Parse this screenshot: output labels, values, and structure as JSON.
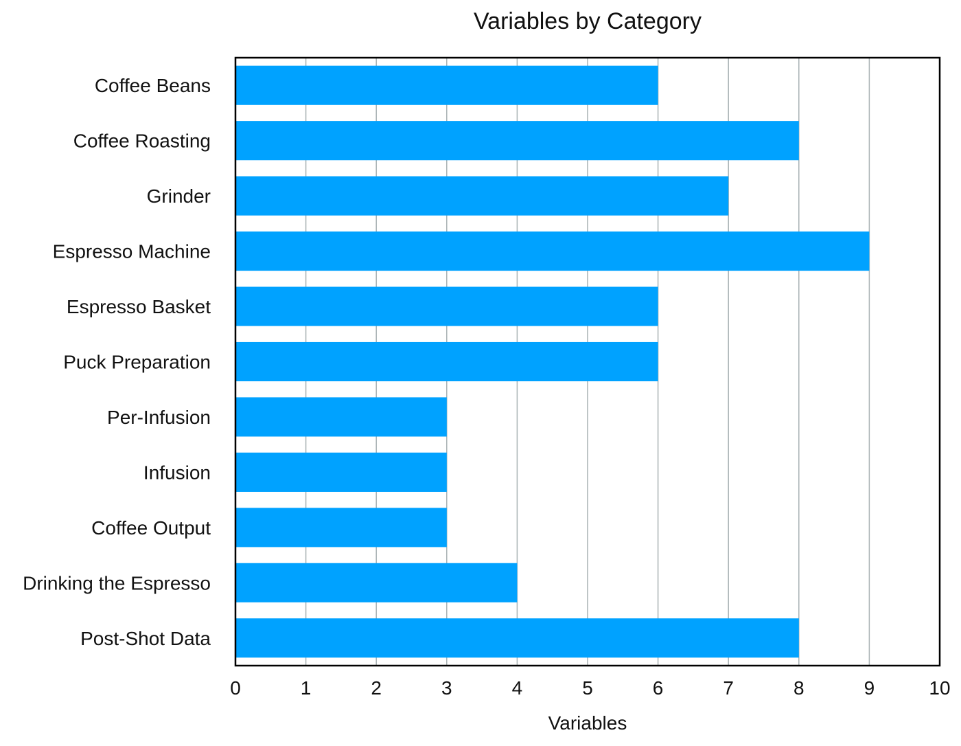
{
  "chart_data": {
    "type": "bar",
    "orientation": "horizontal",
    "title": "Variables by Category",
    "xlabel": "Variables",
    "ylabel": "",
    "categories": [
      "Coffee Beans",
      "Coffee Roasting",
      "Grinder",
      "Espresso Machine",
      "Espresso Basket",
      "Puck Preparation",
      "Per-Infusion",
      "Infusion",
      "Coffee Output",
      "Drinking the Espresso",
      "Post-Shot Data"
    ],
    "values": [
      6,
      8,
      7,
      9,
      6,
      6,
      3,
      3,
      3,
      4,
      8
    ],
    "xlim": [
      0,
      10
    ],
    "xticks": [
      "0",
      "1",
      "2",
      "3",
      "4",
      "5",
      "6",
      "7",
      "8",
      "9",
      "10"
    ],
    "grid": "vertical",
    "legend": "none",
    "bar_color": "#00a2ff"
  }
}
